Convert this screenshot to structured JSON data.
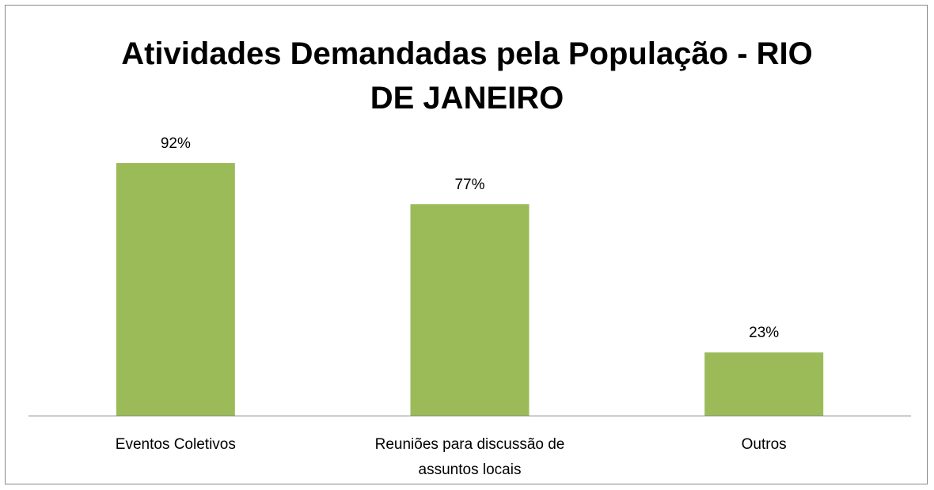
{
  "chart_data": {
    "type": "bar",
    "title": "Atividades Demandadas pela População - RIO DE JANEIRO",
    "categories": [
      "Eventos Coletivos",
      "Reuniões para discussão de assuntos locais",
      "Outros"
    ],
    "values": [
      92,
      77,
      23
    ],
    "value_labels": [
      "92%",
      "77%",
      "23%"
    ],
    "color": "#9bbb59"
  }
}
